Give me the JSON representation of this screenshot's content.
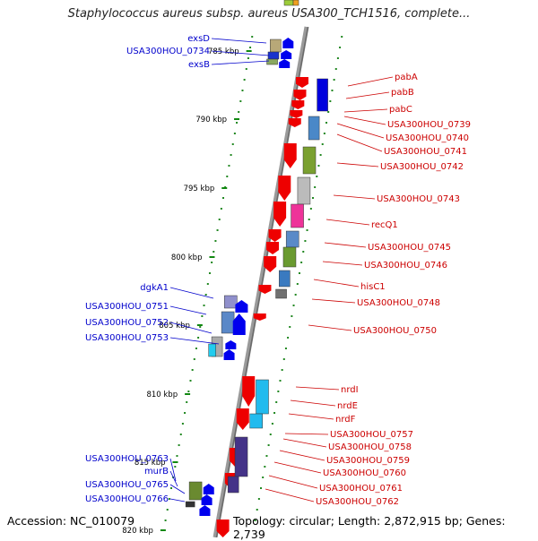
{
  "title": "Staphylococcus aureus subsp. aureus USA300_TCH1516, complete...",
  "footer": {
    "accession": "Accession: NC_010079",
    "topology": "Topology: circular; Length: 2,872,915 bp; Genes: 2,739"
  },
  "colors": {
    "forward_label": "#0000cc",
    "reverse_label": "#cc0000",
    "backbone": "#888888",
    "tick": "#118811"
  },
  "ticks": [
    {
      "label": "785 kbp",
      "kbp": 785
    },
    {
      "label": "790 kbp",
      "kbp": 790
    },
    {
      "label": "795 kbp",
      "kbp": 795
    },
    {
      "label": "800 kbp",
      "kbp": 800
    },
    {
      "label": "805 kbp",
      "kbp": 805
    },
    {
      "label": "810 kbp",
      "kbp": 810
    },
    {
      "label": "815 kbp",
      "kbp": 815
    },
    {
      "label": "820 kbp",
      "kbp": 820
    }
  ],
  "left_labels": [
    "exsD",
    "USA300HOU_0734",
    "exsB",
    "dgkA1",
    "USA300HOU_0751",
    "USA300HOU_0752",
    "USA300HOU_0753",
    "USA300HOU_0763",
    "murB",
    "USA300HOU_0765",
    "USA300HOU_0766"
  ],
  "right_labels": [
    "pabA",
    "pabB",
    "pabC",
    "USA300HOU_0739",
    "USA300HOU_0740",
    "USA300HOU_0741",
    "USA300HOU_0742",
    "USA300HOU_0743",
    "recQ1",
    "USA300HOU_0745",
    "USA300HOU_0746",
    "hisC1",
    "USA300HOU_0748",
    "USA300HOU_0750",
    "nrdI",
    "nrdE",
    "nrdF",
    "USA300HOU_0757",
    "USA300HOU_0758",
    "USA300HOU_0759",
    "USA300HOU_0760",
    "USA300HOU_0761",
    "USA300HOU_0762"
  ]
}
